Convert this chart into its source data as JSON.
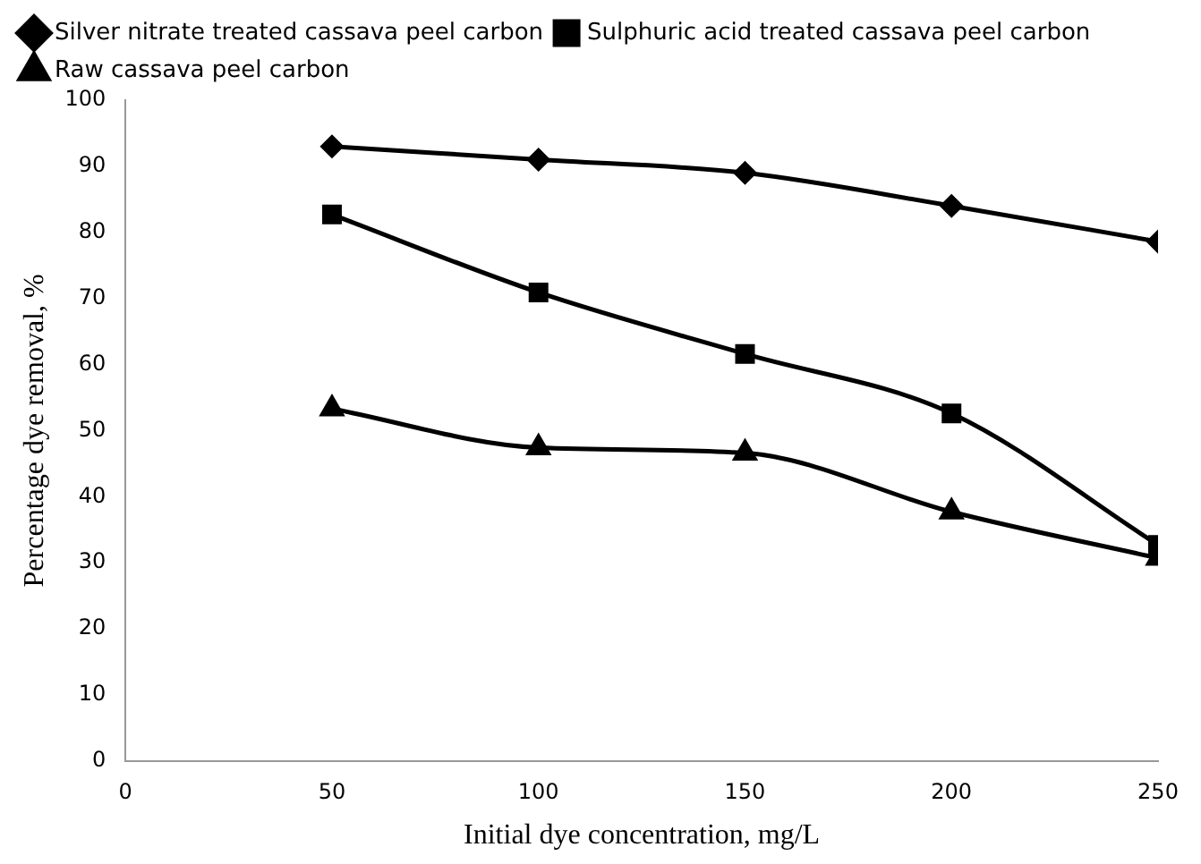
{
  "chart_data": {
    "type": "line",
    "xlabel": "Initial dye concentration, mg/L",
    "ylabel": "Percentage dye removal, %",
    "x": [
      50,
      100,
      150,
      200,
      250
    ],
    "series": [
      {
        "name": "Silver nitrate treated cassava peel carbon",
        "color": "#000000",
        "marker": "diamond",
        "values": [
          93,
          91,
          89,
          84,
          78.6
        ]
      },
      {
        "name": "Sulphuric acid treated cassava peel carbon",
        "color": "#000000",
        "marker": "square",
        "values": [
          82.7,
          70.9,
          61.6,
          52.6,
          32.7
        ]
      },
      {
        "name": "Raw cassava peel carbon",
        "color": "#000000",
        "marker": "triangle",
        "values": [
          53.3,
          47.4,
          46.6,
          37.7,
          30.7
        ]
      }
    ],
    "xlim": [
      0,
      250
    ],
    "xticks": [
      0,
      50,
      100,
      150,
      200,
      250
    ],
    "ylim": [
      0,
      100
    ],
    "yticks": [
      0,
      10,
      20,
      30,
      40,
      50,
      60,
      70,
      80,
      90,
      100
    ],
    "grid": false,
    "legend": "top",
    "line_style": "solid"
  }
}
